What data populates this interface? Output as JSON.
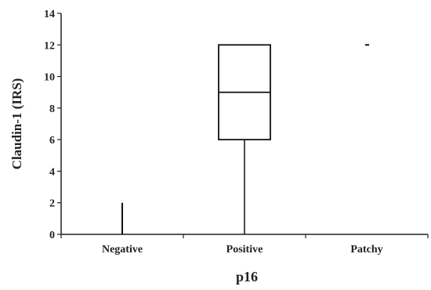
{
  "chart_data": {
    "type": "box",
    "xlabel": "p16",
    "ylabel": "Claudin-1 (IRS)",
    "ylim": [
      0,
      14
    ],
    "yticks": [
      0,
      2,
      4,
      6,
      8,
      10,
      12,
      14
    ],
    "categories": [
      "Negative",
      "Positive",
      "Patchy"
    ],
    "boxes": [
      {
        "category": "Negative",
        "min": 0,
        "q1": 0,
        "median": 0,
        "q3": 0,
        "max": 2
      },
      {
        "category": "Positive",
        "min": 0,
        "q1": 6,
        "median": 9,
        "q3": 12,
        "max": 12
      },
      {
        "category": "Patchy",
        "min": 12,
        "q1": 12,
        "median": 12,
        "q3": 12,
        "max": 12
      }
    ],
    "grid": false,
    "legend": "none"
  }
}
